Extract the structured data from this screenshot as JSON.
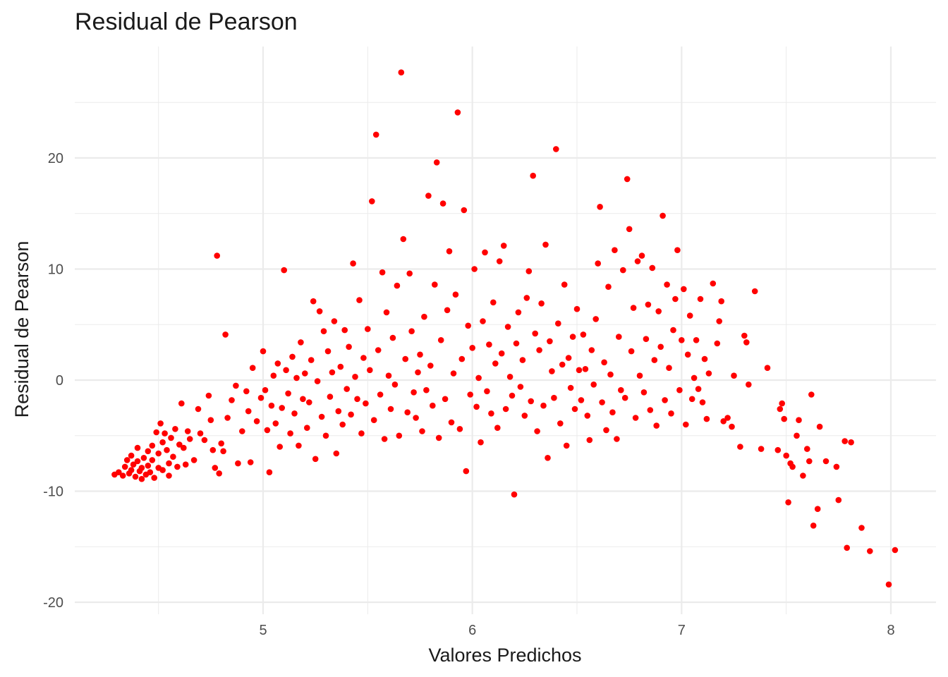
{
  "chart_data": {
    "type": "scatter",
    "title": "Residual de Pearson",
    "xlabel": "Valores Predichos",
    "ylabel": "Residual de Pearson",
    "xlim": [
      4.2,
      8.2
    ],
    "ylim": [
      -21,
      30
    ],
    "x_ticks": [
      5,
      6,
      7,
      8
    ],
    "y_ticks": [
      -20,
      -10,
      0,
      10,
      20
    ],
    "x_tick_labels": [
      "5",
      "6",
      "7",
      "8"
    ],
    "y_tick_labels": [
      "-20",
      "-10",
      "0",
      "10",
      "20"
    ],
    "grid": true,
    "point_color": "#ff0000",
    "series": [
      {
        "points": [
          [
            4.29,
            -8.5
          ],
          [
            4.31,
            -8.3
          ],
          [
            4.33,
            -8.6
          ],
          [
            4.34,
            -7.8
          ],
          [
            4.35,
            -7.2
          ],
          [
            4.36,
            -8.4
          ],
          [
            4.37,
            -6.8
          ],
          [
            4.37,
            -8.1
          ],
          [
            4.38,
            -7.6
          ],
          [
            4.39,
            -8.7
          ],
          [
            4.4,
            -7.3
          ],
          [
            4.4,
            -6.1
          ],
          [
            4.41,
            -8.2
          ],
          [
            4.42,
            -7.9
          ],
          [
            4.42,
            -8.9
          ],
          [
            4.43,
            -7.0
          ],
          [
            4.44,
            -8.5
          ],
          [
            4.45,
            -6.4
          ],
          [
            4.45,
            -7.7
          ],
          [
            4.46,
            -8.3
          ],
          [
            4.47,
            -5.9
          ],
          [
            4.47,
            -7.2
          ],
          [
            4.48,
            -8.8
          ],
          [
            4.49,
            -4.7
          ],
          [
            4.5,
            -6.6
          ],
          [
            4.5,
            -7.9
          ],
          [
            4.51,
            -3.9
          ],
          [
            4.52,
            -5.6
          ],
          [
            4.52,
            -8.1
          ],
          [
            4.53,
            -4.8
          ],
          [
            4.54,
            -6.3
          ],
          [
            4.55,
            -7.5
          ],
          [
            4.55,
            -8.6
          ],
          [
            4.56,
            -5.2
          ],
          [
            4.57,
            -6.9
          ],
          [
            4.58,
            -4.4
          ],
          [
            4.59,
            -7.8
          ],
          [
            4.6,
            -5.8
          ],
          [
            4.61,
            -2.1
          ],
          [
            4.62,
            -6.1
          ],
          [
            4.63,
            -7.6
          ],
          [
            4.64,
            -4.6
          ],
          [
            4.65,
            -5.3
          ],
          [
            4.67,
            -7.2
          ],
          [
            4.69,
            -2.6
          ],
          [
            4.7,
            -4.8
          ],
          [
            4.72,
            -5.4
          ],
          [
            4.74,
            -1.4
          ],
          [
            4.75,
            -3.6
          ],
          [
            4.76,
            -6.3
          ],
          [
            4.77,
            -7.9
          ],
          [
            4.78,
            11.2
          ],
          [
            4.79,
            -8.4
          ],
          [
            4.8,
            -5.7
          ],
          [
            4.81,
            -6.4
          ],
          [
            4.82,
            4.1
          ],
          [
            4.83,
            -3.4
          ],
          [
            4.85,
            -1.8
          ],
          [
            4.87,
            -0.5
          ],
          [
            4.88,
            -7.5
          ],
          [
            4.9,
            -4.6
          ],
          [
            4.92,
            -1.0
          ],
          [
            4.93,
            -2.8
          ],
          [
            4.94,
            -7.4
          ],
          [
            4.95,
            1.1
          ],
          [
            4.97,
            -3.7
          ],
          [
            4.99,
            -1.6
          ],
          [
            5.0,
            2.6
          ],
          [
            5.01,
            -0.9
          ],
          [
            5.02,
            -4.5
          ],
          [
            5.03,
            -8.3
          ],
          [
            5.04,
            -2.3
          ],
          [
            5.05,
            0.4
          ],
          [
            5.06,
            -3.9
          ],
          [
            5.07,
            1.5
          ],
          [
            5.08,
            -6.0
          ],
          [
            5.09,
            -2.5
          ],
          [
            5.1,
            9.9
          ],
          [
            5.11,
            0.9
          ],
          [
            5.12,
            -1.2
          ],
          [
            5.13,
            -4.8
          ],
          [
            5.14,
            2.1
          ],
          [
            5.15,
            -3.0
          ],
          [
            5.16,
            0.2
          ],
          [
            5.17,
            -5.9
          ],
          [
            5.18,
            3.4
          ],
          [
            5.19,
            -1.7
          ],
          [
            5.2,
            0.6
          ],
          [
            5.21,
            -4.3
          ],
          [
            5.22,
            -2.0
          ],
          [
            5.23,
            1.8
          ],
          [
            5.24,
            7.1
          ],
          [
            5.25,
            -7.1
          ],
          [
            5.26,
            -0.1
          ],
          [
            5.27,
            6.2
          ],
          [
            5.28,
            -3.3
          ],
          [
            5.29,
            4.4
          ],
          [
            5.3,
            -5.0
          ],
          [
            5.31,
            2.6
          ],
          [
            5.32,
            -1.5
          ],
          [
            5.33,
            0.7
          ],
          [
            5.34,
            5.3
          ],
          [
            5.35,
            -6.6
          ],
          [
            5.36,
            -2.8
          ],
          [
            5.37,
            1.2
          ],
          [
            5.38,
            -4.0
          ],
          [
            5.39,
            4.5
          ],
          [
            5.4,
            -0.8
          ],
          [
            5.41,
            3.0
          ],
          [
            5.42,
            -3.1
          ],
          [
            5.43,
            10.5
          ],
          [
            5.44,
            0.3
          ],
          [
            5.45,
            -1.7
          ],
          [
            5.46,
            7.2
          ],
          [
            5.47,
            -4.8
          ],
          [
            5.48,
            2.0
          ],
          [
            5.49,
            -2.1
          ],
          [
            5.5,
            4.6
          ],
          [
            5.51,
            0.9
          ],
          [
            5.52,
            16.1
          ],
          [
            5.53,
            -3.6
          ],
          [
            5.54,
            22.1
          ],
          [
            5.55,
            2.7
          ],
          [
            5.56,
            -1.3
          ],
          [
            5.57,
            9.7
          ],
          [
            5.58,
            -5.3
          ],
          [
            5.59,
            6.1
          ],
          [
            5.6,
            0.4
          ],
          [
            5.61,
            -2.6
          ],
          [
            5.62,
            3.8
          ],
          [
            5.63,
            -0.4
          ],
          [
            5.64,
            8.5
          ],
          [
            5.65,
            -5.0
          ],
          [
            5.66,
            27.7
          ],
          [
            5.67,
            12.7
          ],
          [
            5.68,
            1.9
          ],
          [
            5.69,
            -2.9
          ],
          [
            5.7,
            9.6
          ],
          [
            5.71,
            4.4
          ],
          [
            5.72,
            -1.1
          ],
          [
            5.73,
            -3.4
          ],
          [
            5.74,
            0.7
          ],
          [
            5.75,
            2.3
          ],
          [
            5.76,
            -4.6
          ],
          [
            5.77,
            5.7
          ],
          [
            5.78,
            -0.9
          ],
          [
            5.79,
            16.6
          ],
          [
            5.8,
            1.3
          ],
          [
            5.81,
            -2.3
          ],
          [
            5.82,
            8.6
          ],
          [
            5.83,
            19.6
          ],
          [
            5.84,
            -5.2
          ],
          [
            5.85,
            3.6
          ],
          [
            5.86,
            15.9
          ],
          [
            5.87,
            -1.7
          ],
          [
            5.88,
            6.3
          ],
          [
            5.89,
            11.6
          ],
          [
            5.9,
            -3.8
          ],
          [
            5.91,
            0.6
          ],
          [
            5.92,
            7.7
          ],
          [
            5.93,
            24.1
          ],
          [
            5.94,
            -4.4
          ],
          [
            5.95,
            1.9
          ],
          [
            5.96,
            15.3
          ],
          [
            5.97,
            -8.2
          ],
          [
            5.98,
            4.9
          ],
          [
            5.99,
            -1.3
          ],
          [
            6.0,
            2.9
          ],
          [
            6.01,
            10.0
          ],
          [
            6.02,
            -2.4
          ],
          [
            6.03,
            0.2
          ],
          [
            6.04,
            -5.6
          ],
          [
            6.05,
            5.3
          ],
          [
            6.06,
            11.5
          ],
          [
            6.07,
            -1.0
          ],
          [
            6.08,
            3.2
          ],
          [
            6.09,
            -3.0
          ],
          [
            6.1,
            7.0
          ],
          [
            6.11,
            1.5
          ],
          [
            6.12,
            -4.3
          ],
          [
            6.13,
            10.7
          ],
          [
            6.14,
            2.4
          ],
          [
            6.15,
            12.1
          ],
          [
            6.16,
            -2.6
          ],
          [
            6.17,
            4.8
          ],
          [
            6.18,
            0.3
          ],
          [
            6.19,
            -1.4
          ],
          [
            6.2,
            -10.3
          ],
          [
            6.21,
            3.3
          ],
          [
            6.22,
            6.1
          ],
          [
            6.23,
            -0.6
          ],
          [
            6.24,
            1.8
          ],
          [
            6.25,
            -3.2
          ],
          [
            6.26,
            7.4
          ],
          [
            6.27,
            9.8
          ],
          [
            6.28,
            -1.9
          ],
          [
            6.29,
            18.4
          ],
          [
            6.3,
            4.2
          ],
          [
            6.31,
            -4.6
          ],
          [
            6.32,
            2.7
          ],
          [
            6.33,
            6.9
          ],
          [
            6.34,
            -2.3
          ],
          [
            6.35,
            12.2
          ],
          [
            6.36,
            -7.0
          ],
          [
            6.37,
            3.5
          ],
          [
            6.38,
            0.8
          ],
          [
            6.39,
            -1.6
          ],
          [
            6.4,
            20.8
          ],
          [
            6.41,
            5.1
          ],
          [
            6.42,
            -3.9
          ],
          [
            6.43,
            1.4
          ],
          [
            6.44,
            8.6
          ],
          [
            6.45,
            -5.9
          ],
          [
            6.46,
            2.0
          ],
          [
            6.47,
            -0.7
          ],
          [
            6.48,
            3.9
          ],
          [
            6.49,
            -2.6
          ],
          [
            6.5,
            6.4
          ],
          [
            6.51,
            0.9
          ],
          [
            6.52,
            -1.8
          ],
          [
            6.53,
            4.1
          ],
          [
            6.54,
            1.0
          ],
          [
            6.55,
            -3.2
          ],
          [
            6.56,
            -5.4
          ],
          [
            6.57,
            2.7
          ],
          [
            6.58,
            -0.4
          ],
          [
            6.59,
            5.5
          ],
          [
            6.6,
            10.5
          ],
          [
            6.61,
            15.6
          ],
          [
            6.62,
            -2.0
          ],
          [
            6.63,
            1.6
          ],
          [
            6.64,
            -4.5
          ],
          [
            6.65,
            8.4
          ],
          [
            6.66,
            0.5
          ],
          [
            6.67,
            -2.9
          ],
          [
            6.68,
            11.7
          ],
          [
            6.69,
            -5.3
          ],
          [
            6.7,
            3.9
          ],
          [
            6.71,
            -0.9
          ],
          [
            6.72,
            9.9
          ],
          [
            6.73,
            -1.6
          ],
          [
            6.74,
            18.1
          ],
          [
            6.75,
            13.6
          ],
          [
            6.76,
            2.6
          ],
          [
            6.77,
            6.5
          ],
          [
            6.78,
            -3.4
          ],
          [
            6.79,
            10.7
          ],
          [
            6.8,
            0.4
          ],
          [
            6.81,
            11.2
          ],
          [
            6.82,
            -1.1
          ],
          [
            6.83,
            3.7
          ],
          [
            6.84,
            6.8
          ],
          [
            6.85,
            -2.7
          ],
          [
            6.86,
            10.1
          ],
          [
            6.87,
            1.8
          ],
          [
            6.88,
            -4.1
          ],
          [
            6.89,
            6.2
          ],
          [
            6.9,
            3.0
          ],
          [
            6.91,
            14.8
          ],
          [
            6.92,
            -1.8
          ],
          [
            6.93,
            8.6
          ],
          [
            6.94,
            1.1
          ],
          [
            6.95,
            -3.0
          ],
          [
            6.96,
            4.5
          ],
          [
            6.97,
            7.3
          ],
          [
            6.98,
            11.7
          ],
          [
            6.99,
            -0.9
          ],
          [
            7.0,
            3.6
          ],
          [
            7.01,
            8.2
          ],
          [
            7.02,
            -4.0
          ],
          [
            7.03,
            2.3
          ],
          [
            7.04,
            5.8
          ],
          [
            7.05,
            -1.7
          ],
          [
            7.06,
            0.2
          ],
          [
            7.07,
            3.6
          ],
          [
            7.08,
            -0.8
          ],
          [
            7.09,
            7.3
          ],
          [
            7.1,
            -2.0
          ],
          [
            7.11,
            1.9
          ],
          [
            7.12,
            -3.5
          ],
          [
            7.13,
            0.6
          ],
          [
            7.15,
            8.7
          ],
          [
            7.17,
            3.3
          ],
          [
            7.18,
            5.3
          ],
          [
            7.19,
            7.1
          ],
          [
            7.2,
            -3.7
          ],
          [
            7.22,
            -3.4
          ],
          [
            7.24,
            -4.2
          ],
          [
            7.25,
            0.4
          ],
          [
            7.28,
            -6.0
          ],
          [
            7.3,
            4.0
          ],
          [
            7.31,
            3.4
          ],
          [
            7.32,
            -0.4
          ],
          [
            7.35,
            8.0
          ],
          [
            7.38,
            -6.2
          ],
          [
            7.41,
            1.1
          ],
          [
            7.46,
            -6.3
          ],
          [
            7.47,
            -2.6
          ],
          [
            7.48,
            -2.1
          ],
          [
            7.49,
            -3.5
          ],
          [
            7.5,
            -6.8
          ],
          [
            7.51,
            -11.0
          ],
          [
            7.52,
            -7.5
          ],
          [
            7.53,
            -7.8
          ],
          [
            7.55,
            -5.0
          ],
          [
            7.56,
            -3.6
          ],
          [
            7.58,
            -8.6
          ],
          [
            7.6,
            -6.2
          ],
          [
            7.61,
            -7.3
          ],
          [
            7.62,
            -1.3
          ],
          [
            7.63,
            -13.1
          ],
          [
            7.65,
            -11.6
          ],
          [
            7.66,
            -4.2
          ],
          [
            7.69,
            -7.3
          ],
          [
            7.74,
            -7.8
          ],
          [
            7.75,
            -10.8
          ],
          [
            7.78,
            -5.5
          ],
          [
            7.79,
            -15.1
          ],
          [
            7.81,
            -5.6
          ],
          [
            7.86,
            -13.3
          ],
          [
            7.9,
            -15.4
          ],
          [
            7.99,
            -18.4
          ],
          [
            8.02,
            -15.3
          ]
        ]
      }
    ]
  }
}
